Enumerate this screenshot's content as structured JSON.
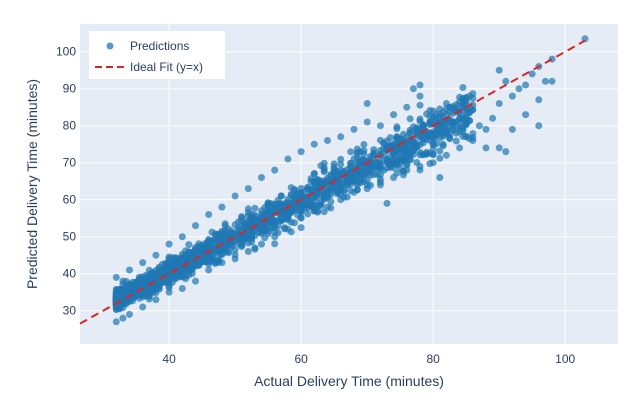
{
  "chart_data": {
    "type": "scatter",
    "title": "",
    "xlabel": "Actual Delivery Time (minutes)",
    "ylabel": "Predicted Delivery Time (minutes)",
    "xlim": [
      26.5,
      108
    ],
    "ylim": [
      21,
      107.5
    ],
    "xticks": [
      40,
      60,
      80,
      100
    ],
    "yticks": [
      30,
      40,
      50,
      60,
      70,
      80,
      90,
      100
    ],
    "grid": true,
    "legend_position": "top-left",
    "colors": {
      "plot_bg": "#e5ecf6",
      "grid": "#ffffff",
      "points": "#1f77b4",
      "ideal_line": "#d62728"
    },
    "series": [
      {
        "name": "Predictions",
        "kind": "scatter",
        "cloud": {
          "x_range": [
            32,
            103
          ],
          "center_line": {
            "slope": 0.95,
            "intercept": 2.4
          },
          "notes": "dense band from x=32 to ~85, sparse beyond"
        },
        "points": [
          [
            32,
            27
          ],
          [
            32,
            39
          ],
          [
            33,
            28
          ],
          [
            33,
            38
          ],
          [
            34,
            29
          ],
          [
            34,
            41
          ],
          [
            36,
            31
          ],
          [
            36,
            43
          ],
          [
            38,
            33
          ],
          [
            38,
            45
          ],
          [
            40,
            35
          ],
          [
            40,
            48
          ],
          [
            42,
            36
          ],
          [
            42,
            50
          ],
          [
            44,
            38
          ],
          [
            44,
            53
          ],
          [
            46,
            41
          ],
          [
            46,
            56
          ],
          [
            48,
            43
          ],
          [
            48,
            58
          ],
          [
            50,
            44
          ],
          [
            50,
            61
          ],
          [
            52,
            46
          ],
          [
            52,
            63
          ],
          [
            54,
            48
          ],
          [
            54,
            66
          ],
          [
            56,
            50
          ],
          [
            56,
            68
          ],
          [
            58,
            52
          ],
          [
            58,
            71
          ],
          [
            60,
            55
          ],
          [
            60,
            73
          ],
          [
            62,
            57
          ],
          [
            62,
            75
          ],
          [
            64,
            58
          ],
          [
            64,
            76
          ],
          [
            66,
            60
          ],
          [
            66,
            77
          ],
          [
            68,
            62
          ],
          [
            68,
            79
          ],
          [
            70,
            63
          ],
          [
            70,
            81
          ],
          [
            70,
            86
          ],
          [
            72,
            64
          ],
          [
            72,
            80
          ],
          [
            73,
            59
          ],
          [
            74,
            66
          ],
          [
            74,
            83
          ],
          [
            76,
            68
          ],
          [
            76,
            85
          ],
          [
            77,
            90
          ],
          [
            78,
            69
          ],
          [
            78,
            88
          ],
          [
            78,
            91
          ],
          [
            80,
            70
          ],
          [
            80,
            84
          ],
          [
            81,
            66
          ],
          [
            82,
            72
          ],
          [
            82,
            86
          ],
          [
            84,
            74
          ],
          [
            84,
            82
          ],
          [
            85,
            77
          ],
          [
            86,
            76
          ],
          [
            87,
            80
          ],
          [
            88,
            74
          ],
          [
            88,
            79
          ],
          [
            89,
            82
          ],
          [
            90,
            74
          ],
          [
            90,
            86
          ],
          [
            90,
            95
          ],
          [
            91,
            73
          ],
          [
            91,
            92
          ],
          [
            92,
            79
          ],
          [
            92,
            88
          ],
          [
            93,
            90
          ],
          [
            94,
            83
          ],
          [
            94,
            91
          ],
          [
            95,
            94
          ],
          [
            96,
            80
          ],
          [
            96,
            87
          ],
          [
            96,
            96
          ],
          [
            97,
            92
          ],
          [
            98,
            92
          ],
          [
            98,
            98
          ],
          [
            103,
            103.5
          ]
        ]
      },
      {
        "name": "Ideal Fit (y=x)",
        "kind": "line",
        "dash": "dashed",
        "x": [
          26.5,
          103
        ],
        "y": [
          26.5,
          103
        ]
      }
    ]
  }
}
